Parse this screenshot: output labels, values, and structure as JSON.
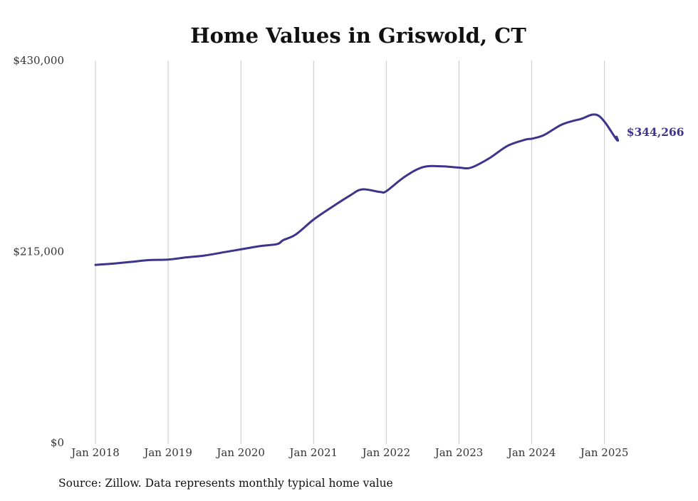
{
  "chart_data": {
    "type": "line",
    "title": "Home Values in Griswold, CT",
    "xlabel": "",
    "ylabel": "",
    "source": "Source: Zillow. Data represents monthly typical home value",
    "line_color": "#3d348b",
    "ylim": [
      0,
      430000
    ],
    "y_ticks": [
      {
        "value": 0,
        "label": "$0"
      },
      {
        "value": 215000,
        "label": "$215,000"
      },
      {
        "value": 430000,
        "label": "$430,000"
      }
    ],
    "x_ticks": [
      {
        "value": "2018-01",
        "label": "Jan 2018"
      },
      {
        "value": "2019-01",
        "label": "Jan 2019"
      },
      {
        "value": "2020-01",
        "label": "Jan 2020"
      },
      {
        "value": "2021-01",
        "label": "Jan 2021"
      },
      {
        "value": "2022-01",
        "label": "Jan 2022"
      },
      {
        "value": "2023-01",
        "label": "Jan 2023"
      },
      {
        "value": "2024-01",
        "label": "Jan 2024"
      },
      {
        "value": "2025-01",
        "label": "Jan 2025"
      }
    ],
    "grid": {
      "vertical": true,
      "horizontal": false
    },
    "end_label": "$344,266",
    "series": [
      {
        "x": [
          "2018-01",
          "2018-04",
          "2018-07",
          "2018-10",
          "2019-01",
          "2019-04",
          "2019-07",
          "2019-10",
          "2020-01",
          "2020-04",
          "2020-07",
          "2020-08",
          "2020-10",
          "2021-01",
          "2021-04",
          "2021-07",
          "2021-09",
          "2021-12",
          "2022-01",
          "2022-04",
          "2022-07",
          "2022-10",
          "2023-01",
          "2023-03",
          "2023-06",
          "2023-09",
          "2023-12",
          "2024-01",
          "2024-03",
          "2024-06",
          "2024-09",
          "2024-12",
          "2025-03",
          "2025-03"
        ],
        "y": [
          200000,
          201500,
          203500,
          205500,
          206000,
          208500,
          210500,
          214000,
          217500,
          221000,
          223500,
          228000,
          234000,
          251000,
          265000,
          278000,
          285000,
          282000,
          283000,
          299000,
          310000,
          311000,
          309500,
          309500,
          320000,
          334000,
          341000,
          342000,
          346000,
          358000,
          364000,
          368000,
          341000,
          344266
        ]
      }
    ]
  }
}
